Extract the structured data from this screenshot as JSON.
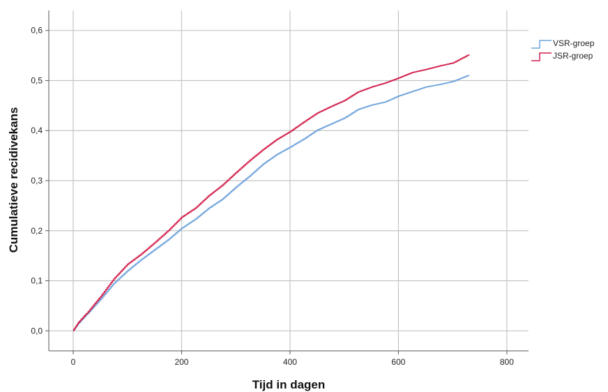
{
  "chart_data": {
    "type": "line",
    "title": "",
    "xlabel": "Tijd in dagen",
    "ylabel": "Cumulatieve recidivekans",
    "xlim": [
      -45,
      840
    ],
    "ylim": [
      -0.04,
      0.64
    ],
    "x_ticks": [
      0,
      200,
      400,
      600,
      800
    ],
    "x_tick_labels": [
      "0",
      "200",
      "400",
      "600",
      "800"
    ],
    "y_ticks": [
      0.0,
      0.1,
      0.2,
      0.3,
      0.4,
      0.5,
      0.6
    ],
    "y_tick_labels": [
      "0,0",
      "0,1",
      "0,2",
      "0,3",
      "0,4",
      "0,5",
      "0,6"
    ],
    "grid": true,
    "legend_position": "top-right outside",
    "series": [
      {
        "name": "VSR-groep",
        "color": "#6fa3dc",
        "points": [
          [
            0,
            0.0
          ],
          [
            10,
            0.015
          ],
          [
            25,
            0.033
          ],
          [
            50,
            0.063
          ],
          [
            75,
            0.095
          ],
          [
            100,
            0.12
          ],
          [
            125,
            0.142
          ],
          [
            150,
            0.162
          ],
          [
            175,
            0.182
          ],
          [
            200,
            0.205
          ],
          [
            225,
            0.223
          ],
          [
            250,
            0.245
          ],
          [
            275,
            0.263
          ],
          [
            300,
            0.287
          ],
          [
            325,
            0.309
          ],
          [
            350,
            0.333
          ],
          [
            375,
            0.352
          ],
          [
            400,
            0.367
          ],
          [
            425,
            0.383
          ],
          [
            450,
            0.401
          ],
          [
            475,
            0.413
          ],
          [
            500,
            0.425
          ],
          [
            525,
            0.442
          ],
          [
            550,
            0.451
          ],
          [
            575,
            0.457
          ],
          [
            600,
            0.469
          ],
          [
            625,
            0.478
          ],
          [
            650,
            0.487
          ],
          [
            675,
            0.492
          ],
          [
            700,
            0.498
          ],
          [
            730,
            0.511
          ]
        ]
      },
      {
        "name": "JSR-groep",
        "color": "#d21f4b",
        "points": [
          [
            0,
            0.0
          ],
          [
            10,
            0.017
          ],
          [
            25,
            0.035
          ],
          [
            50,
            0.068
          ],
          [
            75,
            0.104
          ],
          [
            100,
            0.133
          ],
          [
            125,
            0.153
          ],
          [
            150,
            0.176
          ],
          [
            175,
            0.2
          ],
          [
            200,
            0.227
          ],
          [
            225,
            0.245
          ],
          [
            250,
            0.27
          ],
          [
            275,
            0.291
          ],
          [
            300,
            0.316
          ],
          [
            325,
            0.34
          ],
          [
            350,
            0.362
          ],
          [
            375,
            0.382
          ],
          [
            400,
            0.398
          ],
          [
            425,
            0.417
          ],
          [
            450,
            0.435
          ],
          [
            475,
            0.448
          ],
          [
            500,
            0.46
          ],
          [
            525,
            0.477
          ],
          [
            550,
            0.487
          ],
          [
            575,
            0.495
          ],
          [
            600,
            0.505
          ],
          [
            625,
            0.516
          ],
          [
            650,
            0.522
          ],
          [
            675,
            0.529
          ],
          [
            700,
            0.535
          ],
          [
            730,
            0.552
          ]
        ]
      }
    ]
  }
}
